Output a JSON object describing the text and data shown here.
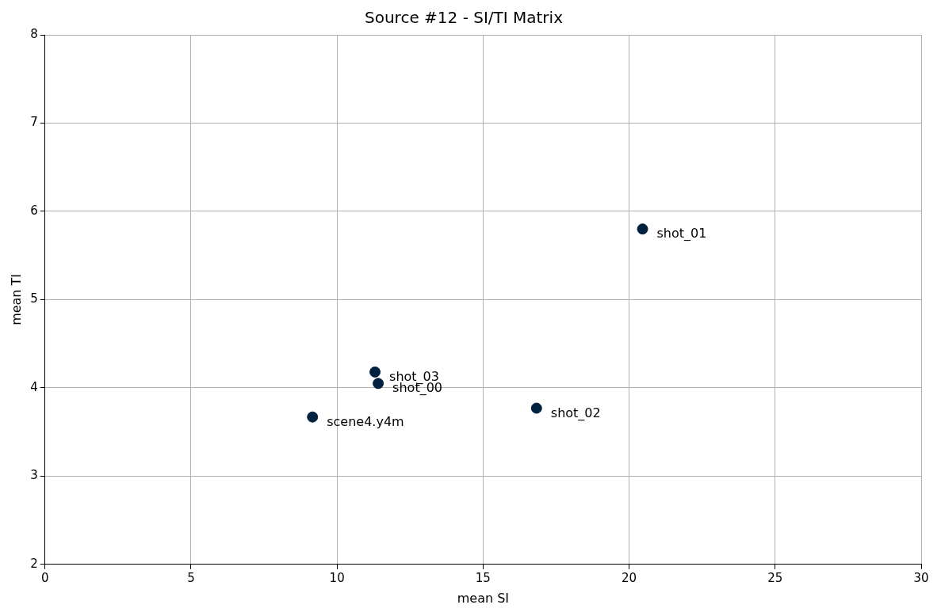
{
  "chart_data": {
    "type": "scatter",
    "title": "Source #12 - SI/TI Matrix",
    "xlabel": "mean SI",
    "ylabel": "mean TI",
    "x": [
      9.16,
      11.41,
      20.46,
      16.83,
      11.3
    ],
    "values": [
      3.67,
      4.05,
      5.8,
      3.77,
      4.18
    ],
    "color": "#002240",
    "marker": "circle",
    "xlim": [
      0,
      30
    ],
    "xticks": [
      0,
      5,
      10,
      15,
      20,
      25,
      30
    ],
    "ylim": [
      2,
      8
    ],
    "yticks": [
      2,
      3,
      4,
      5,
      6,
      7,
      8
    ],
    "grid": true,
    "legend": false,
    "annotations": [
      {
        "text": "scene4.y4m",
        "x": 9.16,
        "y": 3.67
      },
      {
        "text": "shot_00",
        "x": 11.41,
        "y": 4.05
      },
      {
        "text": "shot_01",
        "x": 20.46,
        "y": 5.8
      },
      {
        "text": "shot_02",
        "x": 16.83,
        "y": 3.77
      },
      {
        "text": "shot_03",
        "x": 11.3,
        "y": 4.18
      }
    ]
  }
}
